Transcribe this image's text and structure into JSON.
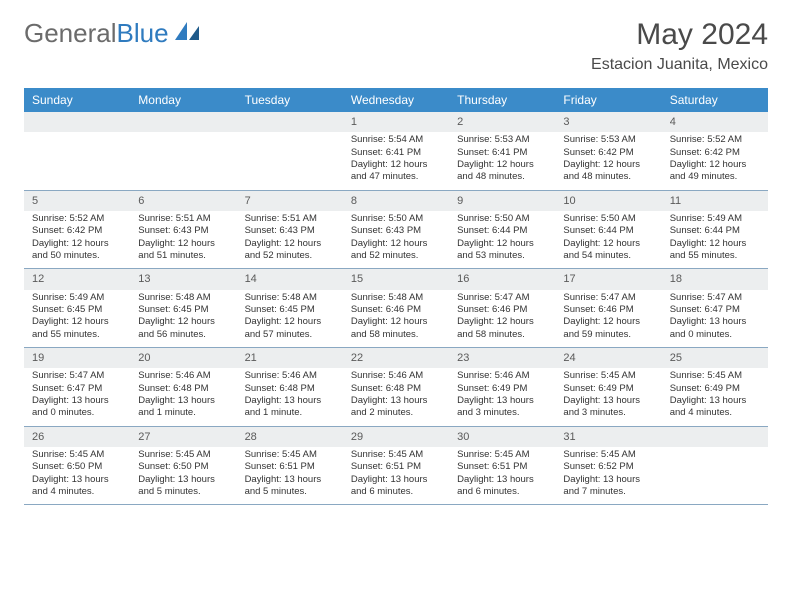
{
  "logo": {
    "text_gray": "General",
    "text_blue": "Blue"
  },
  "title": "May 2024",
  "location": "Estacion Juanita, Mexico",
  "colors": {
    "header_bg": "#3b8bc9",
    "header_text": "#ffffff",
    "daynum_bg": "#eceeef",
    "border": "#8aa8c2",
    "text": "#333333"
  },
  "dayNames": [
    "Sunday",
    "Monday",
    "Tuesday",
    "Wednesday",
    "Thursday",
    "Friday",
    "Saturday"
  ],
  "weeks": [
    [
      {
        "day": "",
        "sunrise": "",
        "sunset": "",
        "daylight": ""
      },
      {
        "day": "",
        "sunrise": "",
        "sunset": "",
        "daylight": ""
      },
      {
        "day": "",
        "sunrise": "",
        "sunset": "",
        "daylight": ""
      },
      {
        "day": "1",
        "sunrise": "Sunrise: 5:54 AM",
        "sunset": "Sunset: 6:41 PM",
        "daylight": "Daylight: 12 hours and 47 minutes."
      },
      {
        "day": "2",
        "sunrise": "Sunrise: 5:53 AM",
        "sunset": "Sunset: 6:41 PM",
        "daylight": "Daylight: 12 hours and 48 minutes."
      },
      {
        "day": "3",
        "sunrise": "Sunrise: 5:53 AM",
        "sunset": "Sunset: 6:42 PM",
        "daylight": "Daylight: 12 hours and 48 minutes."
      },
      {
        "day": "4",
        "sunrise": "Sunrise: 5:52 AM",
        "sunset": "Sunset: 6:42 PM",
        "daylight": "Daylight: 12 hours and 49 minutes."
      }
    ],
    [
      {
        "day": "5",
        "sunrise": "Sunrise: 5:52 AM",
        "sunset": "Sunset: 6:42 PM",
        "daylight": "Daylight: 12 hours and 50 minutes."
      },
      {
        "day": "6",
        "sunrise": "Sunrise: 5:51 AM",
        "sunset": "Sunset: 6:43 PM",
        "daylight": "Daylight: 12 hours and 51 minutes."
      },
      {
        "day": "7",
        "sunrise": "Sunrise: 5:51 AM",
        "sunset": "Sunset: 6:43 PM",
        "daylight": "Daylight: 12 hours and 52 minutes."
      },
      {
        "day": "8",
        "sunrise": "Sunrise: 5:50 AM",
        "sunset": "Sunset: 6:43 PM",
        "daylight": "Daylight: 12 hours and 52 minutes."
      },
      {
        "day": "9",
        "sunrise": "Sunrise: 5:50 AM",
        "sunset": "Sunset: 6:44 PM",
        "daylight": "Daylight: 12 hours and 53 minutes."
      },
      {
        "day": "10",
        "sunrise": "Sunrise: 5:50 AM",
        "sunset": "Sunset: 6:44 PM",
        "daylight": "Daylight: 12 hours and 54 minutes."
      },
      {
        "day": "11",
        "sunrise": "Sunrise: 5:49 AM",
        "sunset": "Sunset: 6:44 PM",
        "daylight": "Daylight: 12 hours and 55 minutes."
      }
    ],
    [
      {
        "day": "12",
        "sunrise": "Sunrise: 5:49 AM",
        "sunset": "Sunset: 6:45 PM",
        "daylight": "Daylight: 12 hours and 55 minutes."
      },
      {
        "day": "13",
        "sunrise": "Sunrise: 5:48 AM",
        "sunset": "Sunset: 6:45 PM",
        "daylight": "Daylight: 12 hours and 56 minutes."
      },
      {
        "day": "14",
        "sunrise": "Sunrise: 5:48 AM",
        "sunset": "Sunset: 6:45 PM",
        "daylight": "Daylight: 12 hours and 57 minutes."
      },
      {
        "day": "15",
        "sunrise": "Sunrise: 5:48 AM",
        "sunset": "Sunset: 6:46 PM",
        "daylight": "Daylight: 12 hours and 58 minutes."
      },
      {
        "day": "16",
        "sunrise": "Sunrise: 5:47 AM",
        "sunset": "Sunset: 6:46 PM",
        "daylight": "Daylight: 12 hours and 58 minutes."
      },
      {
        "day": "17",
        "sunrise": "Sunrise: 5:47 AM",
        "sunset": "Sunset: 6:46 PM",
        "daylight": "Daylight: 12 hours and 59 minutes."
      },
      {
        "day": "18",
        "sunrise": "Sunrise: 5:47 AM",
        "sunset": "Sunset: 6:47 PM",
        "daylight": "Daylight: 13 hours and 0 minutes."
      }
    ],
    [
      {
        "day": "19",
        "sunrise": "Sunrise: 5:47 AM",
        "sunset": "Sunset: 6:47 PM",
        "daylight": "Daylight: 13 hours and 0 minutes."
      },
      {
        "day": "20",
        "sunrise": "Sunrise: 5:46 AM",
        "sunset": "Sunset: 6:48 PM",
        "daylight": "Daylight: 13 hours and 1 minute."
      },
      {
        "day": "21",
        "sunrise": "Sunrise: 5:46 AM",
        "sunset": "Sunset: 6:48 PM",
        "daylight": "Daylight: 13 hours and 1 minute."
      },
      {
        "day": "22",
        "sunrise": "Sunrise: 5:46 AM",
        "sunset": "Sunset: 6:48 PM",
        "daylight": "Daylight: 13 hours and 2 minutes."
      },
      {
        "day": "23",
        "sunrise": "Sunrise: 5:46 AM",
        "sunset": "Sunset: 6:49 PM",
        "daylight": "Daylight: 13 hours and 3 minutes."
      },
      {
        "day": "24",
        "sunrise": "Sunrise: 5:45 AM",
        "sunset": "Sunset: 6:49 PM",
        "daylight": "Daylight: 13 hours and 3 minutes."
      },
      {
        "day": "25",
        "sunrise": "Sunrise: 5:45 AM",
        "sunset": "Sunset: 6:49 PM",
        "daylight": "Daylight: 13 hours and 4 minutes."
      }
    ],
    [
      {
        "day": "26",
        "sunrise": "Sunrise: 5:45 AM",
        "sunset": "Sunset: 6:50 PM",
        "daylight": "Daylight: 13 hours and 4 minutes."
      },
      {
        "day": "27",
        "sunrise": "Sunrise: 5:45 AM",
        "sunset": "Sunset: 6:50 PM",
        "daylight": "Daylight: 13 hours and 5 minutes."
      },
      {
        "day": "28",
        "sunrise": "Sunrise: 5:45 AM",
        "sunset": "Sunset: 6:51 PM",
        "daylight": "Daylight: 13 hours and 5 minutes."
      },
      {
        "day": "29",
        "sunrise": "Sunrise: 5:45 AM",
        "sunset": "Sunset: 6:51 PM",
        "daylight": "Daylight: 13 hours and 6 minutes."
      },
      {
        "day": "30",
        "sunrise": "Sunrise: 5:45 AM",
        "sunset": "Sunset: 6:51 PM",
        "daylight": "Daylight: 13 hours and 6 minutes."
      },
      {
        "day": "31",
        "sunrise": "Sunrise: 5:45 AM",
        "sunset": "Sunset: 6:52 PM",
        "daylight": "Daylight: 13 hours and 7 minutes."
      },
      {
        "day": "",
        "sunrise": "",
        "sunset": "",
        "daylight": ""
      }
    ]
  ]
}
